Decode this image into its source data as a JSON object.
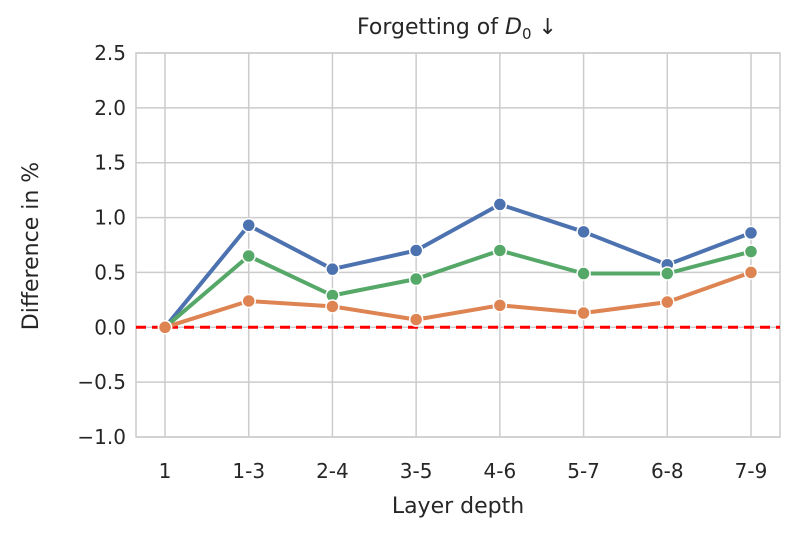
{
  "chart_data": {
    "type": "line",
    "title": "Forgetting of D₀ ↓",
    "title_parts": {
      "prefix": "Forgetting of ",
      "symbol": "D",
      "subscript": "0",
      "suffix": " ↓"
    },
    "xlabel": "Layer depth",
    "ylabel": "Difference in %",
    "categories": [
      "1",
      "1-3",
      "2-4",
      "3-5",
      "4-6",
      "5-7",
      "6-8",
      "7-9"
    ],
    "ylim": [
      -1.0,
      2.5
    ],
    "yticks": [
      -1.0,
      -0.5,
      0.0,
      0.5,
      1.0,
      1.5,
      2.0,
      2.5
    ],
    "ytick_labels": [
      "−1.0",
      "−0.5",
      "0.0",
      "0.5",
      "1.0",
      "1.5",
      "2.0",
      "2.5"
    ],
    "grid": true,
    "series": [
      {
        "color": "#4c72b0",
        "values": [
          0.0,
          0.93,
          0.53,
          0.7,
          1.12,
          0.87,
          0.57,
          0.86
        ]
      },
      {
        "color": "#55a868",
        "values": [
          0.0,
          0.65,
          0.29,
          0.44,
          0.7,
          0.49,
          0.49,
          0.69
        ]
      },
      {
        "color": "#dd8452",
        "values": [
          0.0,
          0.24,
          0.19,
          0.07,
          0.2,
          0.13,
          0.23,
          0.5
        ]
      }
    ],
    "reference_line": {
      "y": 0.0,
      "color": "#ff0000",
      "style": "dashed"
    }
  }
}
